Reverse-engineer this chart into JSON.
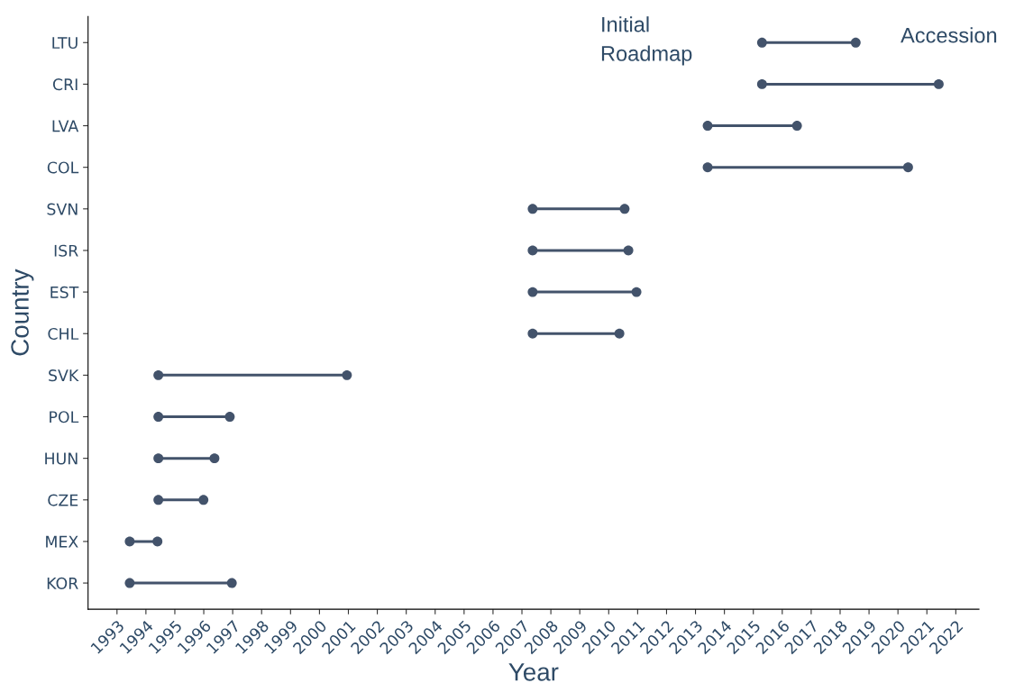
{
  "chart_data": {
    "type": "bar",
    "orientation": "horizontal",
    "marker": "circle",
    "xlabel": "Year",
    "ylabel": "Country",
    "categories": [
      "LTU",
      "CRI",
      "LVA",
      "COL",
      "SVN",
      "ISR",
      "EST",
      "CHL",
      "SVK",
      "POL",
      "HUN",
      "CZE",
      "MEX",
      "KOR"
    ],
    "series": [
      {
        "color": "#43536b",
        "base": [
          2015.3,
          2015.3,
          2013.42,
          2013.42,
          2007.37,
          2007.37,
          2007.37,
          2007.37,
          1994.43,
          1994.43,
          1994.43,
          1994.43,
          1993.44,
          1993.44
        ],
        "values": [
          3.24,
          6.11,
          3.09,
          6.93,
          3.18,
          3.31,
          3.59,
          3.0,
          6.52,
          2.47,
          1.94,
          1.56,
          0.96,
          3.53
        ]
      },
      {
        "type": "scatter",
        "name": "Initial\nRoadmap",
        "color": "#43536b",
        "values": [
          2015.3,
          2015.3,
          2013.42,
          2013.42,
          2007.37,
          2007.37,
          2007.37,
          2007.37,
          1994.43,
          1994.43,
          1994.43,
          1994.43,
          1993.44,
          1993.44
        ]
      },
      {
        "type": "scatter",
        "name": "Accession",
        "color": "#43536b",
        "values": [
          2018.54,
          2021.41,
          2016.51,
          2020.35,
          2010.55,
          2010.68,
          2010.96,
          2010.37,
          2000.95,
          1996.9,
          1996.37,
          1995.99,
          1994.4,
          1996.97
        ]
      }
    ],
    "xlim": [
      1992.0,
      2022.8
    ],
    "xticks": [
      1993,
      1994,
      1995,
      1996,
      1997,
      1998,
      1999,
      2000,
      2001,
      2002,
      2003,
      2004,
      2005,
      2006,
      2007,
      2008,
      2009,
      2010,
      2011,
      2012,
      2013,
      2014,
      2015,
      2016,
      2017,
      2018,
      2019,
      2020,
      2021,
      2022
    ],
    "grid": false
  }
}
